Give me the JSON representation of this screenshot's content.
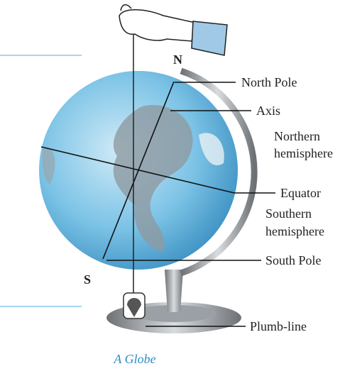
{
  "pole_letters": {
    "north": "N",
    "south": "S"
  },
  "labels": {
    "north_pole": "North Pole",
    "axis": "Axis",
    "northern_hemisphere": [
      "Northern",
      "hemisphere"
    ],
    "equator": "Equator",
    "southern_hemisphere": [
      "Southern",
      "hemisphere"
    ],
    "south_pole": "South Pole",
    "plumb_line": "Plumb-line"
  },
  "caption": "A Globe"
}
